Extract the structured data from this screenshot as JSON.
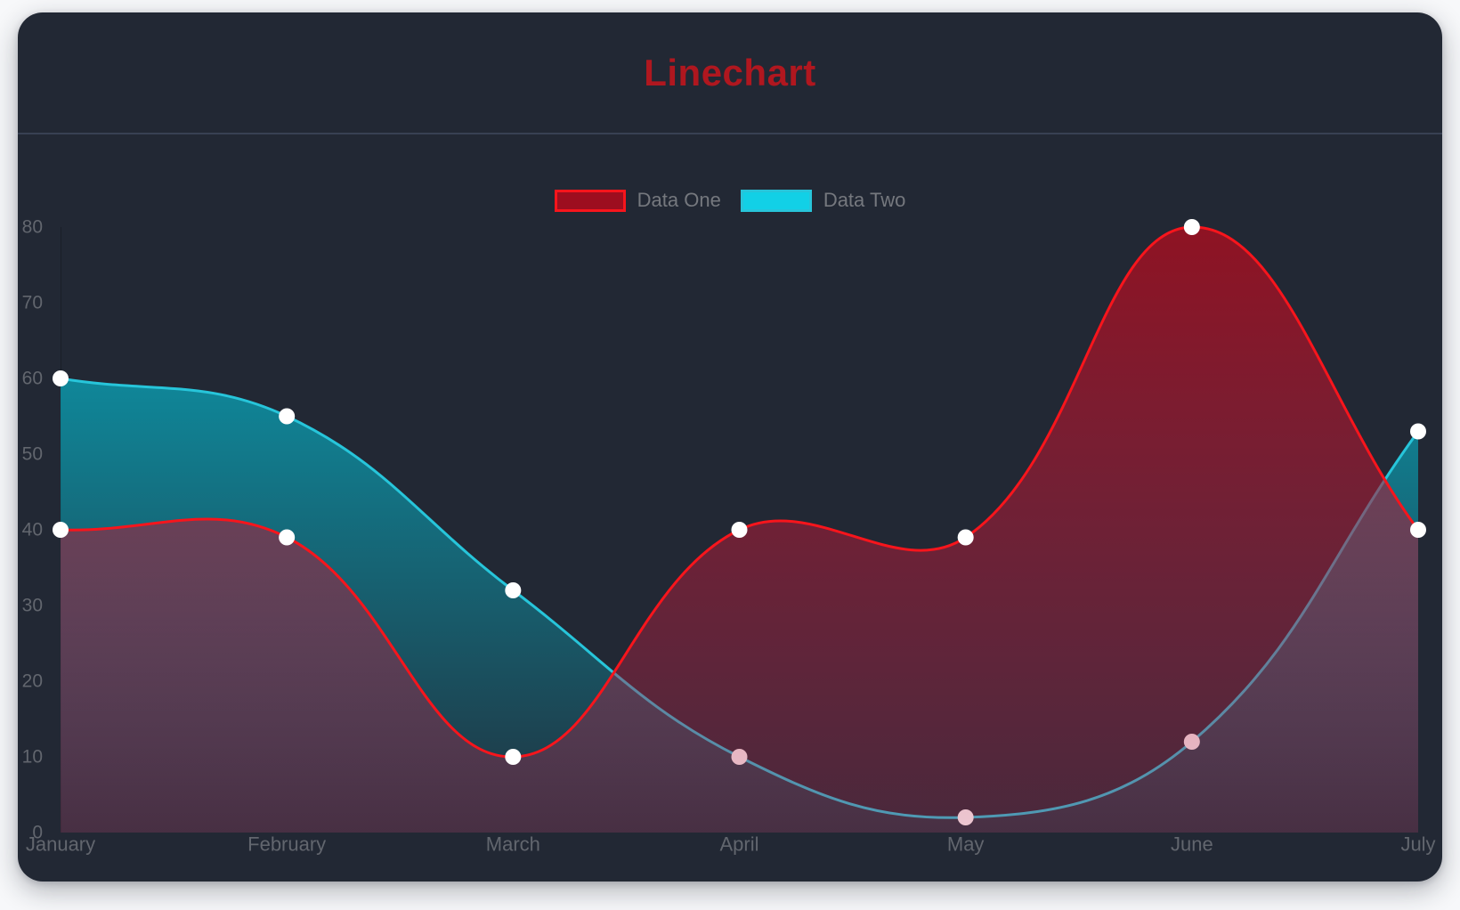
{
  "header": {
    "title": "Linechart",
    "title_color": "#b0171f",
    "divider_color": "#3c4559"
  },
  "card": {
    "background": "#222834",
    "page_background": "#f7f8fa"
  },
  "chart_data": {
    "type": "line",
    "title": "Linechart",
    "categories": [
      "January",
      "February",
      "March",
      "April",
      "May",
      "June",
      "July"
    ],
    "series": [
      {
        "name": "Data One",
        "values": [
          40,
          39,
          10,
          40,
          39,
          80,
          40
        ],
        "line_color": "#f7151c",
        "legend_fill": "#9d0e1f",
        "fill_top": "rgba(166,14,31,0.82)",
        "fill_bottom": "rgba(185,40,80,0.26)"
      },
      {
        "name": "Data Two",
        "values": [
          60,
          55,
          32,
          10,
          2,
          12,
          53
        ],
        "line_color": "#27c5da",
        "legend_fill": "#12d0e6",
        "fill_top": "rgba(1,205,228,0.75)",
        "fill_bottom": "rgba(1,205,228,0.06)"
      }
    ],
    "yticks": [
      0,
      10,
      20,
      30,
      40,
      50,
      60,
      70,
      80
    ],
    "ylim": [
      0,
      80
    ],
    "xlabel": "",
    "ylabel": "",
    "grid": false,
    "legend_position": "top",
    "tension": 0.4,
    "point_color": "#ffffff",
    "tick_color": "#62666e",
    "axis_line_color": "rgba(0,0,0,0.22)"
  }
}
